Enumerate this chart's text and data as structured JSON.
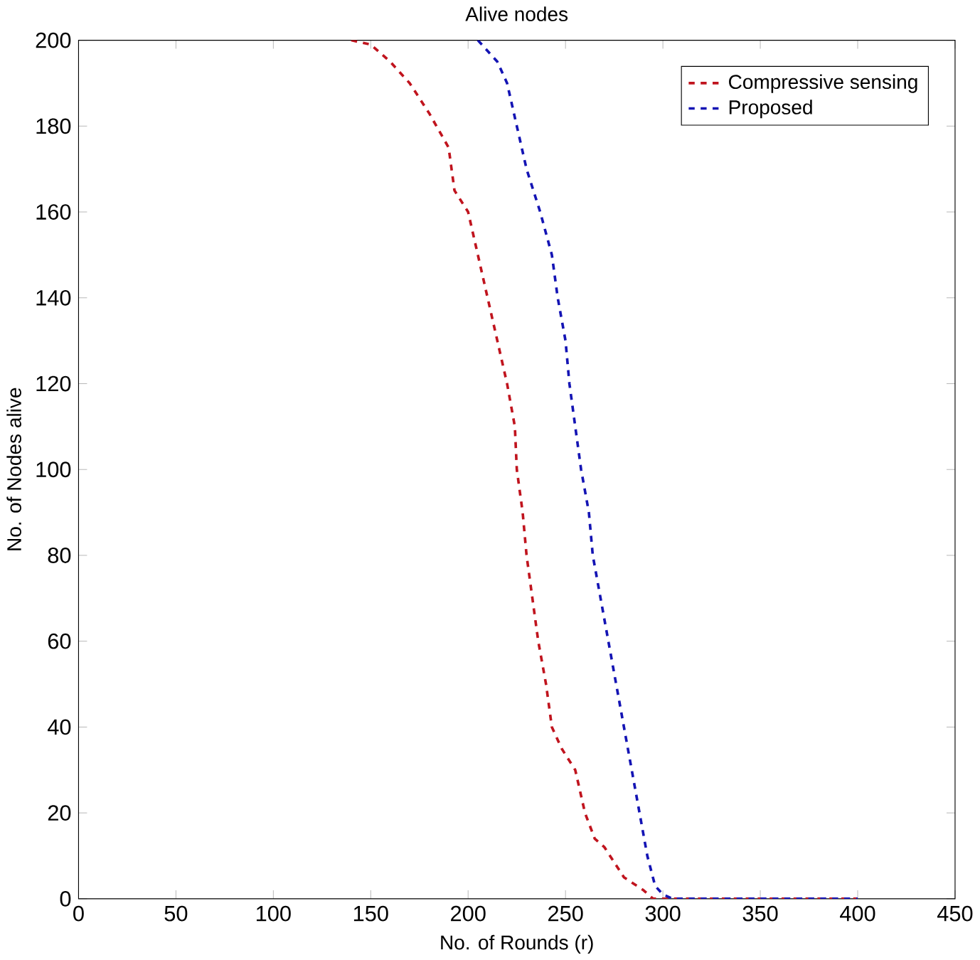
{
  "chart_data": {
    "type": "line",
    "title": "Alive nodes",
    "xlabel": "No. of Rounds (r)",
    "ylabel": "No. of  Nodes alive",
    "xlim": [
      0,
      450
    ],
    "ylim": [
      0,
      200
    ],
    "xticks": [
      0,
      50,
      100,
      150,
      200,
      250,
      300,
      350,
      400,
      450
    ],
    "yticks": [
      0,
      20,
      40,
      60,
      80,
      100,
      120,
      140,
      160,
      180,
      200
    ],
    "legend": "top right",
    "line_style": "dashed",
    "grid": false,
    "series": [
      {
        "name": "Compressive sensing",
        "color": "#c0141e",
        "x": [
          140,
          150,
          160,
          170,
          180,
          190,
          193,
          200,
          205,
          210,
          215,
          220,
          224,
          225,
          228,
          230,
          233,
          236,
          240,
          243,
          248,
          255,
          260,
          265,
          270,
          280,
          290,
          295,
          400
        ],
        "values": [
          200,
          199,
          195,
          190,
          183,
          175,
          165,
          160,
          150,
          140,
          130,
          120,
          110,
          100,
          90,
          80,
          70,
          60,
          50,
          40,
          35,
          30,
          20,
          14,
          12,
          5,
          2,
          0,
          0
        ]
      },
      {
        "name": "Proposed",
        "color": "#1414b4",
        "x": [
          205,
          215,
          220,
          225,
          230,
          237,
          243,
          246,
          250,
          252,
          255,
          258,
          262,
          264,
          268,
          272,
          276,
          280,
          284,
          288,
          292,
          296,
          300,
          305,
          400
        ],
        "values": [
          200,
          195,
          190,
          180,
          170,
          160,
          150,
          140,
          130,
          120,
          110,
          100,
          90,
          80,
          70,
          60,
          50,
          40,
          30,
          20,
          10,
          3,
          1,
          0,
          0
        ]
      }
    ]
  }
}
